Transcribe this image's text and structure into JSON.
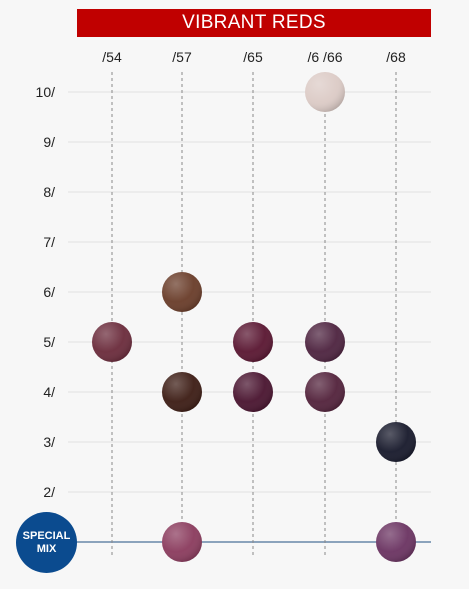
{
  "header": {
    "title": "VIBRANT REDS"
  },
  "special_badge": {
    "line1": "SPECIAL",
    "line2": "MIX"
  },
  "chart_data": {
    "type": "scatter",
    "title": "VIBRANT REDS",
    "columns": [
      "/54",
      "/57",
      "/65",
      "/6 /66",
      "/68"
    ],
    "rows": [
      "10/",
      "9/",
      "8/",
      "7/",
      "6/",
      "5/",
      "4/",
      "3/",
      "2/",
      "SPECIAL MIX"
    ],
    "grid": true,
    "swatches": [
      {
        "column": "/6 /66",
        "row": "10/",
        "color": "#dccbc6"
      },
      {
        "column": "/57",
        "row": "6/",
        "color": "#6a3d2a"
      },
      {
        "column": "/54",
        "row": "5/",
        "color": "#6b2c3c"
      },
      {
        "column": "/65",
        "row": "5/",
        "color": "#5a1732"
      },
      {
        "column": "/6 /66",
        "row": "5/",
        "color": "#4e2440"
      },
      {
        "column": "/57",
        "row": "4/",
        "color": "#3d1d15"
      },
      {
        "column": "/65",
        "row": "4/",
        "color": "#4a1530"
      },
      {
        "column": "/6 /66",
        "row": "4/",
        "color": "#53233c"
      },
      {
        "column": "/68",
        "row": "3/",
        "color": "#181a2c"
      },
      {
        "column": "/57",
        "row": "SPECIAL MIX",
        "color": "#8b3c5e"
      },
      {
        "column": "/68",
        "row": "SPECIAL MIX",
        "color": "#6b3462"
      }
    ]
  },
  "colors": {
    "banner": "#c00000",
    "special_badge": "#0b4b8f",
    "baseline": "#1f4f80"
  }
}
